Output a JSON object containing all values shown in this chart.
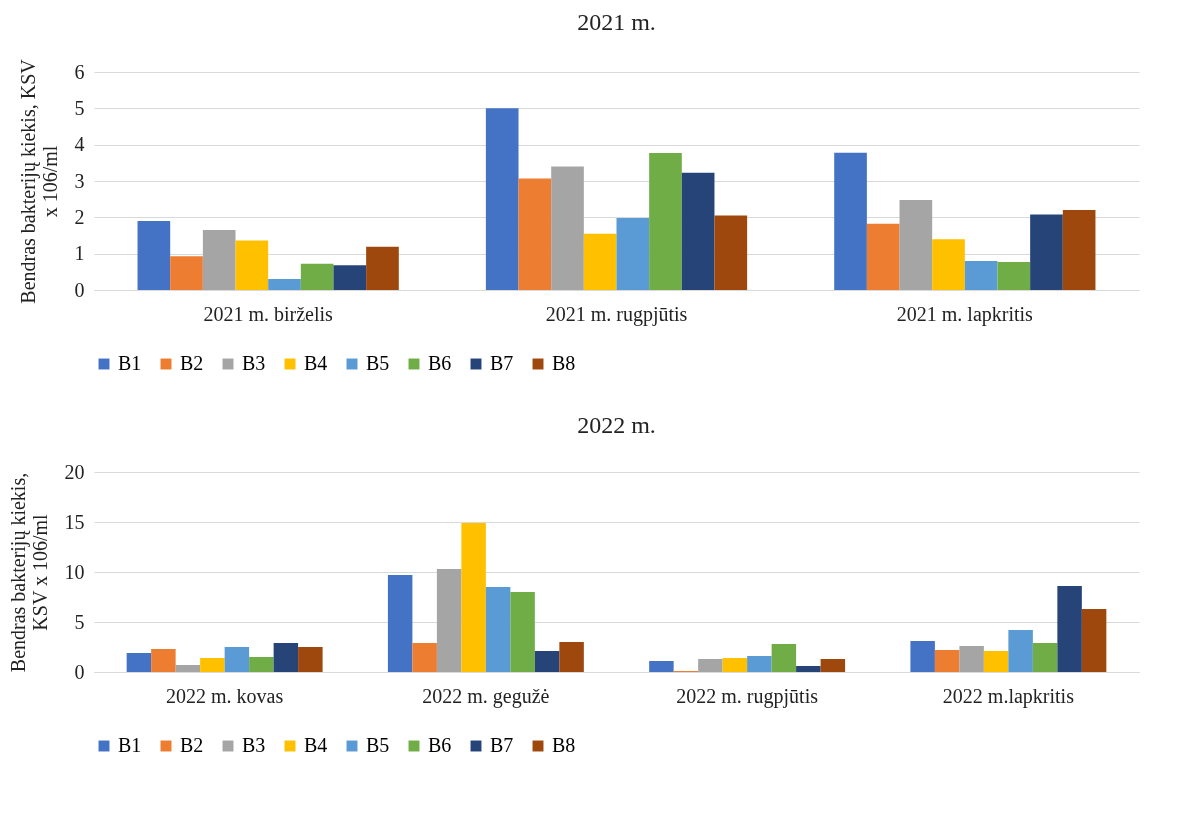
{
  "chart_data": [
    {
      "type": "bar",
      "title": "2021 m.",
      "ylabel": "Bendras bakterijų kiekis, KSV x 106/ml",
      "categories": [
        "2021 m. birželis",
        "2021 m. rugpjūtis",
        "2021 m. lapkritis"
      ],
      "ylim": [
        0,
        6
      ],
      "yticks": [
        0,
        1,
        2,
        3,
        4,
        5,
        6
      ],
      "grid": "y",
      "legend": "bottom",
      "series": [
        {
          "name": "B1",
          "color": "#4472c4",
          "values": [
            1.9,
            5.0,
            3.78
          ]
        },
        {
          "name": "B2",
          "color": "#ed7d31",
          "values": [
            0.93,
            3.07,
            1.82
          ]
        },
        {
          "name": "B3",
          "color": "#a5a5a5",
          "values": [
            1.65,
            3.4,
            2.48
          ]
        },
        {
          "name": "B4",
          "color": "#ffc000",
          "values": [
            1.36,
            1.55,
            1.4
          ]
        },
        {
          "name": "B5",
          "color": "#5b9bd5",
          "values": [
            0.3,
            1.98,
            0.8
          ]
        },
        {
          "name": "B6",
          "color": "#70ad47",
          "values": [
            0.72,
            3.77,
            0.77
          ]
        },
        {
          "name": "B7",
          "color": "#264478",
          "values": [
            0.68,
            3.23,
            2.08
          ]
        },
        {
          "name": "B8",
          "color": "#9e480e",
          "values": [
            1.19,
            2.05,
            2.2
          ]
        }
      ]
    },
    {
      "type": "bar",
      "title": "2022 m.",
      "ylabel": "Bendras bakterijų kiekis, KSV x 106/ml",
      "categories": [
        "2022 m. kovas",
        "2022 m. gegužė",
        "2022 m. rugpjūtis",
        "2022 m.lapkritis"
      ],
      "ylim": [
        0,
        20
      ],
      "yticks": [
        0,
        5,
        10,
        15,
        20
      ],
      "grid": "y",
      "legend": "bottom",
      "series": [
        {
          "name": "B1",
          "color": "#4472c4",
          "values": [
            1.9,
            9.7,
            1.1,
            3.1
          ]
        },
        {
          "name": "B2",
          "color": "#ed7d31",
          "values": [
            2.3,
            2.9,
            0.1,
            2.2
          ]
        },
        {
          "name": "B3",
          "color": "#a5a5a5",
          "values": [
            0.7,
            10.3,
            1.3,
            2.6
          ]
        },
        {
          "name": "B4",
          "color": "#ffc000",
          "values": [
            1.4,
            14.9,
            1.4,
            2.1
          ]
        },
        {
          "name": "B5",
          "color": "#5b9bd5",
          "values": [
            2.5,
            8.5,
            1.6,
            4.2
          ]
        },
        {
          "name": "B6",
          "color": "#70ad47",
          "values": [
            1.5,
            8.0,
            2.8,
            2.9
          ]
        },
        {
          "name": "B7",
          "color": "#264478",
          "values": [
            2.9,
            2.1,
            0.6,
            8.6
          ]
        },
        {
          "name": "B8",
          "color": "#9e480e",
          "values": [
            2.5,
            3.0,
            1.3,
            6.3
          ]
        }
      ]
    }
  ]
}
